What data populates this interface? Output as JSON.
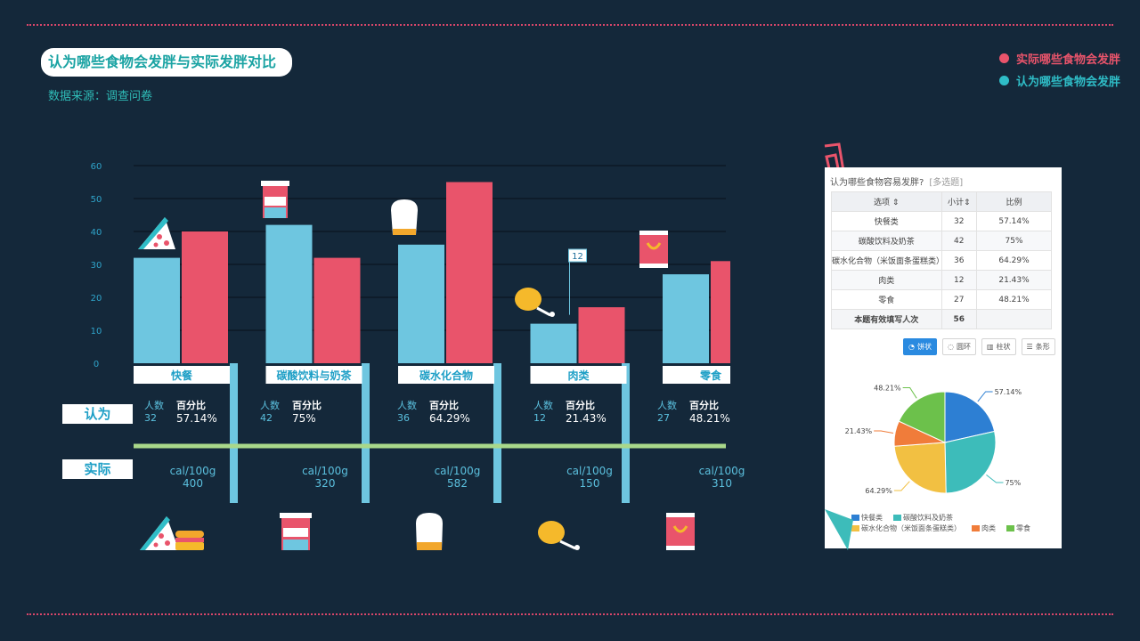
{
  "header": {
    "title": "认为哪些食物会发胖与实际发胖对比",
    "source": "数据来源：调查问卷"
  },
  "legend": {
    "actual": {
      "label": "实际哪些食物会发胖",
      "color": "#e9546b"
    },
    "perceived": {
      "label": "认为哪些食物会发胖",
      "color": "#2fbdc7"
    }
  },
  "chart_data": {
    "type": "bar",
    "categories": [
      "快餐",
      "碳酸饮料与奶茶",
      "碳水化合物",
      "肉类",
      "零食"
    ],
    "series": [
      {
        "name": "认为哪些食物会发胖",
        "color": "#6ec6e0",
        "values": [
          32,
          42,
          36,
          12,
          27
        ]
      },
      {
        "name": "实际哪些食物会发胖",
        "color": "#e9546b",
        "values": [
          40,
          32,
          55,
          17,
          31
        ]
      }
    ],
    "ylim": [
      0,
      60
    ],
    "yticks": [
      "0",
      "10",
      "20",
      "30",
      "40",
      "50",
      "60"
    ],
    "annotation": {
      "category": "肉类",
      "label": "12"
    },
    "grid": true
  },
  "rows": {
    "perceived_label": "认为",
    "actual_label": "实际",
    "count_label": "人数",
    "pct_label": "百分比",
    "unit_label": "cal/100g"
  },
  "stats": [
    {
      "count": "32",
      "pct": "57.14%",
      "cal": "400",
      "icon": "pizza-burger-icon"
    },
    {
      "count": "42",
      "pct": "75%",
      "cal": "320",
      "icon": "drink-cup-icon"
    },
    {
      "count": "36",
      "pct": "64.29%",
      "cal": "582",
      "icon": "bread-icon"
    },
    {
      "count": "12",
      "pct": "21.43%",
      "cal": "150",
      "icon": "drumstick-icon"
    },
    {
      "count": "27",
      "pct": "48.21%",
      "cal": "310",
      "icon": "snack-bag-icon"
    }
  ],
  "survey": {
    "question": "认为哪些食物容易发胖?",
    "tag": "[多选题]",
    "headers": [
      "选项",
      "小计",
      "比例"
    ],
    "rows": [
      {
        "option": "快餐类",
        "count": "32",
        "pct": "57.14%"
      },
      {
        "option": "碳酸饮料及奶茶",
        "count": "42",
        "pct": "75%"
      },
      {
        "option": "碳水化合物（米饭面条蛋糕类）",
        "count": "36",
        "pct": "64.29%"
      },
      {
        "option": "肉类",
        "count": "12",
        "pct": "21.43%"
      },
      {
        "option": "零食",
        "count": "27",
        "pct": "48.21%"
      }
    ],
    "total_label": "本题有效填写人次",
    "total": "56",
    "buttons": [
      "饼状",
      "圆环",
      "柱状",
      "条形"
    ],
    "pie_colors": [
      "#2d7fd3",
      "#3dbcba",
      "#f2c042",
      "#f07c3a",
      "#6cc14b"
    ],
    "pie_values": [
      32,
      42,
      36,
      12,
      27
    ],
    "pie_labels": [
      "57.14%",
      "75%",
      "64.29%",
      "21.43%",
      "48.21%"
    ],
    "pie_legend": [
      "快餐类",
      "碳酸饮料及奶茶",
      "碳水化合物（米饭面条蛋糕类）",
      "肉类",
      "零食"
    ]
  }
}
